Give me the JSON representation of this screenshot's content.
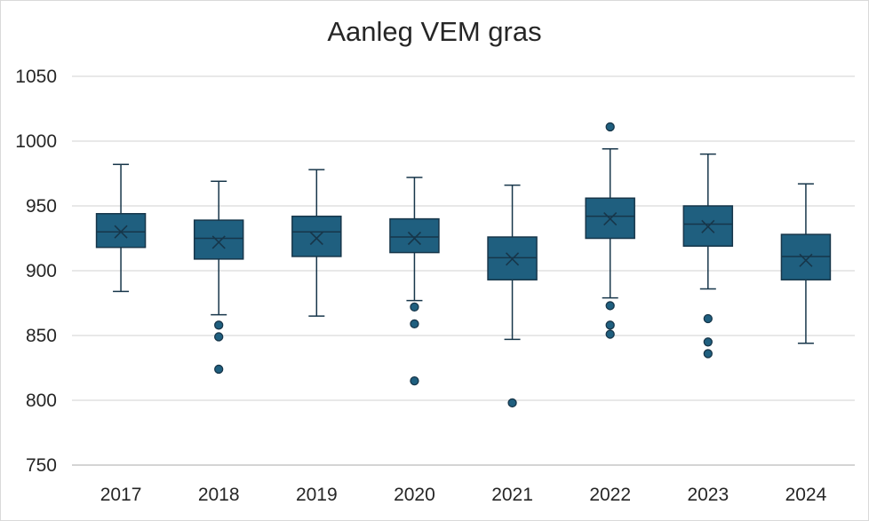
{
  "chart_data": {
    "type": "box",
    "title": "Aanleg VEM gras",
    "xlabel": "",
    "ylabel": "",
    "ylim": [
      750,
      1050
    ],
    "yticks": [
      750,
      800,
      850,
      900,
      950,
      1000,
      1050
    ],
    "grid": true,
    "legend": "none",
    "categories": [
      "2017",
      "2018",
      "2019",
      "2020",
      "2021",
      "2022",
      "2023",
      "2024"
    ],
    "boxes": [
      {
        "category": "2017",
        "min": 884,
        "q1": 918,
        "median": 930,
        "q3": 944,
        "max": 982,
        "mean": 930,
        "outliers": []
      },
      {
        "category": "2018",
        "min": 866,
        "q1": 909,
        "median": 925,
        "q3": 939,
        "max": 969,
        "mean": 922,
        "outliers": [
          858,
          849,
          824
        ]
      },
      {
        "category": "2019",
        "min": 865,
        "q1": 911,
        "median": 930,
        "q3": 942,
        "max": 978,
        "mean": 925,
        "outliers": []
      },
      {
        "category": "2020",
        "min": 877,
        "q1": 914,
        "median": 926,
        "q3": 940,
        "max": 972,
        "mean": 925,
        "outliers": [
          872,
          859,
          815
        ]
      },
      {
        "category": "2021",
        "min": 847,
        "q1": 893,
        "median": 910,
        "q3": 926,
        "max": 966,
        "mean": 909,
        "outliers": [
          798
        ]
      },
      {
        "category": "2022",
        "min": 879,
        "q1": 925,
        "median": 942,
        "q3": 956,
        "max": 994,
        "mean": 940,
        "outliers": [
          1011,
          873,
          858,
          851
        ]
      },
      {
        "category": "2023",
        "min": 886,
        "q1": 919,
        "median": 936,
        "q3": 950,
        "max": 990,
        "mean": 934,
        "outliers": [
          863,
          845,
          836
        ]
      },
      {
        "category": "2024",
        "min": 844,
        "q1": 893,
        "median": 911,
        "q3": 928,
        "max": 967,
        "mean": 908,
        "outliers": []
      }
    ],
    "colors": {
      "box_fill": "#1f5f7f",
      "box_stroke": "#17364a",
      "grid": "#d9d9d9",
      "text": "#262626"
    }
  }
}
